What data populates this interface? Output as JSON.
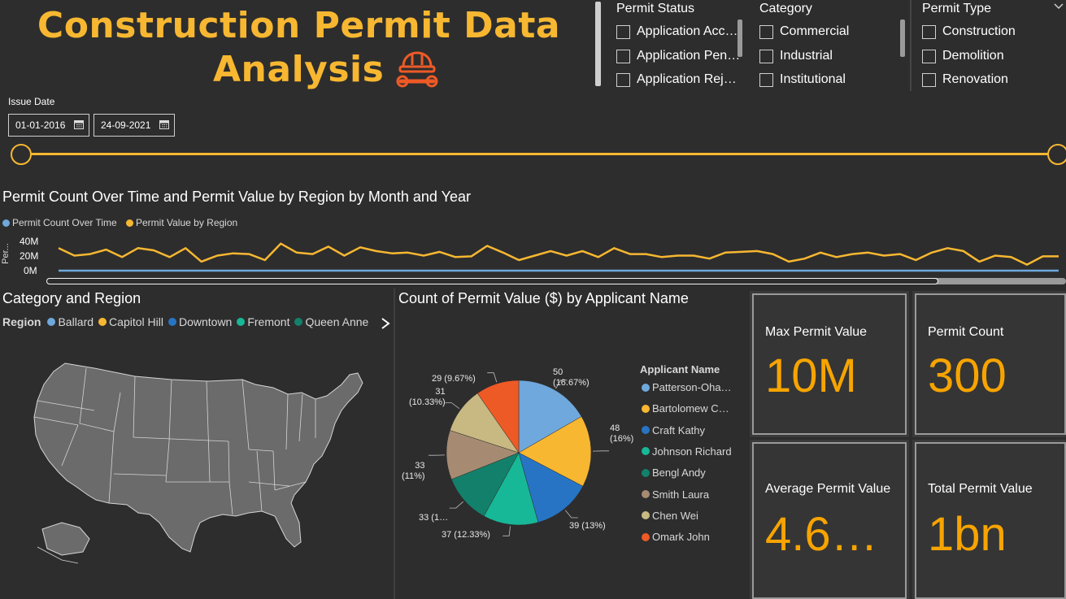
{
  "header": {
    "title_line1": "Construction Permit Data",
    "title_line2": "Analysis"
  },
  "slicers": {
    "permit_status": {
      "title": "Permit Status",
      "items": [
        "Application Acc…",
        "Application Pen…",
        "Application Rej…"
      ]
    },
    "category": {
      "title": "Category",
      "items": [
        "Commercial",
        "Industrial",
        "Institutional"
      ]
    },
    "permit_type": {
      "title": "Permit Type",
      "items": [
        "Construction",
        "Demolition",
        "Renovation"
      ]
    }
  },
  "issue_date": {
    "label": "Issue Date",
    "start": "01-01-2016",
    "end": "24-09-2021"
  },
  "line_chart": {
    "title": "Permit Count Over Time and Permit Value by Region by Month and Year",
    "legend": [
      "Permit Count Over Time",
      "Permit Value by Region"
    ],
    "y_axis_label": "Per...",
    "y_ticks": [
      "40M",
      "20M",
      "0M"
    ]
  },
  "map_visual": {
    "title": "Category and Region",
    "legend_label": "Region",
    "regions": [
      "Ballard",
      "Capitol Hill",
      "Downtown",
      "Fremont",
      "Queen Anne"
    ]
  },
  "pie_visual": {
    "title": "Count of Permit Value ($) by Applicant Name",
    "legend_title": "Applicant Name",
    "labels": [
      "50\n(16.67%)",
      "48\n(16%)",
      "39 (13%)",
      "37 (12.33%)",
      "33 (1…",
      "33\n(11%)",
      "31\n(10.33%)",
      "29 (9.67%)"
    ]
  },
  "cards": {
    "max_permit": {
      "label": "Max Permit Value",
      "value": "10M"
    },
    "permit_count": {
      "label": "Permit Count",
      "value": "300"
    },
    "avg_permit": {
      "label": "Average Permit Value",
      "value": "4.6…"
    },
    "total_permit": {
      "label": "Total Permit Value",
      "value": "1bn"
    }
  },
  "colors": {
    "accent": "#f7b731",
    "card_value": "#f7a400",
    "background": "#2d2d2d",
    "series_count": "#6fa8dc",
    "series_value": "#f7b731",
    "region_ballard": "#6fa8dc",
    "region_capitol_hill": "#f7b731",
    "region_downtown": "#2774c4",
    "region_fremont": "#17b897",
    "region_queen_anne": "#13806b"
  },
  "chart_data": [
    {
      "type": "line",
      "title": "Permit Count Over Time and Permit Value by Region by Month and Year",
      "series": [
        {
          "name": "Permit Count Over Time",
          "values": [
            0,
            0,
            0,
            0,
            0,
            0,
            0,
            0,
            0,
            0,
            0,
            0,
            0,
            0,
            0,
            0,
            0,
            0,
            0,
            0,
            0,
            0,
            0,
            0,
            0,
            0,
            0,
            0,
            0,
            0,
            0,
            0,
            0,
            0,
            0,
            0,
            0,
            0,
            0,
            0,
            0,
            0,
            0,
            0,
            0,
            0,
            0,
            0,
            0,
            0,
            0,
            0,
            0,
            0,
            0,
            0,
            0,
            0,
            0,
            0,
            0,
            0,
            0,
            0,
            0,
            0,
            0,
            0,
            0
          ]
        },
        {
          "name": "Permit Value by Region",
          "values": [
            30,
            20,
            22,
            28,
            18,
            30,
            27,
            18,
            30,
            12,
            20,
            23,
            22,
            14,
            36,
            24,
            22,
            32,
            20,
            31,
            26,
            23,
            24,
            20,
            25,
            18,
            19,
            33,
            24,
            14,
            20,
            26,
            20,
            26,
            18,
            30,
            22,
            22,
            18,
            20,
            20,
            16,
            24,
            25,
            26,
            22,
            12,
            16,
            24,
            18,
            22,
            24,
            20,
            22,
            14,
            24,
            30,
            26,
            12,
            20,
            18,
            8,
            19,
            19
          ]
        }
      ],
      "ylim": [
        0,
        40
      ],
      "y_ticks": [
        "40M",
        "20M",
        "0M"
      ]
    },
    {
      "type": "pie",
      "title": "Count of Permit Value ($) by Applicant Name",
      "categories": [
        "Patterson-Oha…",
        "Bartolomew C…",
        "Craft Kathy",
        "Johnson Richard",
        "Bengl Andy",
        "Smith Laura",
        "Chen Wei",
        "Omark John"
      ],
      "values": [
        50,
        48,
        39,
        37,
        33,
        33,
        31,
        29
      ],
      "colors": [
        "#6fa8dc",
        "#f7b731",
        "#2774c4",
        "#17b897",
        "#13806b",
        "#a68b72",
        "#c8b882",
        "#ee5a26"
      ]
    }
  ]
}
